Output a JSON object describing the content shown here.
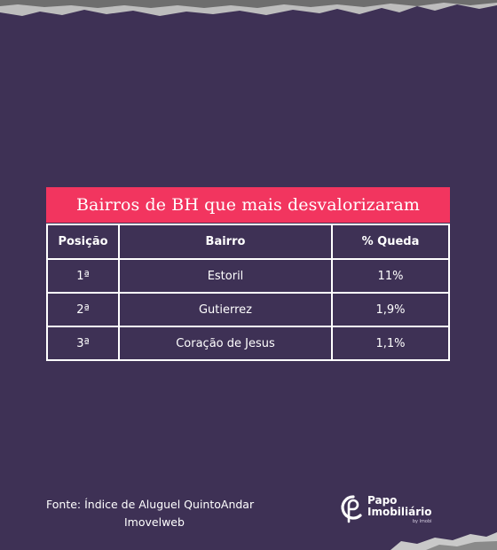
{
  "title": "Bairros de BH que mais desvalorizaram",
  "table": {
    "headers": [
      "Posição",
      "Bairro",
      "% Queda"
    ],
    "rows": [
      {
        "position": "1ª",
        "neighborhood": "Estoril",
        "drop": "11%"
      },
      {
        "position": "2ª",
        "neighborhood": "Gutierrez",
        "drop": "1,9%"
      },
      {
        "position": "3ª",
        "neighborhood": "Coração de Jesus",
        "drop": "1,1%"
      }
    ]
  },
  "source": {
    "line1": "Fonte:  Índice de Aluguel QuintoAndar",
    "line2": "Imovelweb"
  },
  "logo": {
    "name_line1": "Papo",
    "name_line2": "Imobiliário",
    "tagline": "by Imobi",
    "icon": "papo-imobiliario-logo-icon"
  },
  "colors": {
    "background": "#3e3155",
    "banner": "#f2355f",
    "text": "#ffffff"
  }
}
